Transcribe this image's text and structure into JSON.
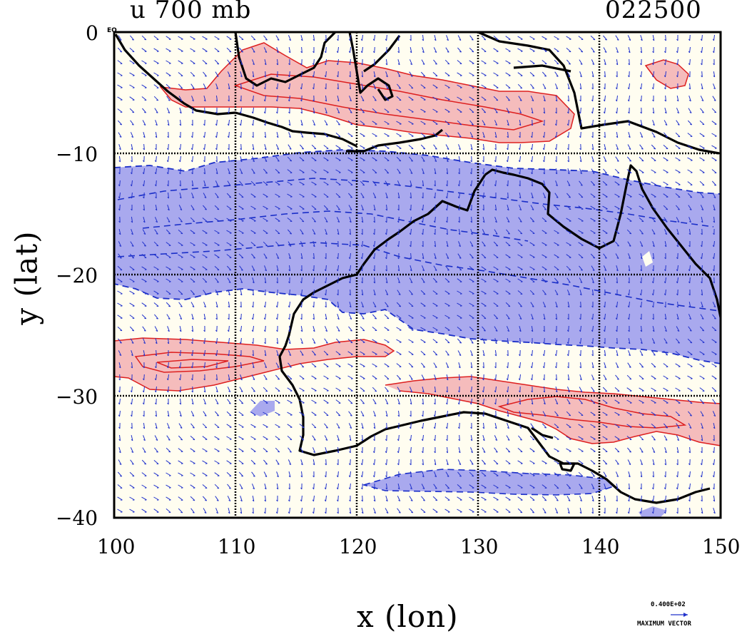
{
  "header": {
    "title_left": "u 700 mb",
    "title_right": "022500"
  },
  "axes": {
    "xlabel": "x (lon)",
    "ylabel": "y (lat)",
    "x_ticks": [
      "100",
      "110",
      "120",
      "130",
      "140",
      "150"
    ],
    "y_ticks": [
      "0",
      "−10",
      "−20",
      "−30",
      "−40"
    ],
    "corner_label": "EQ"
  },
  "legend": {
    "vector_value": "0.400E+02",
    "vector_title": "MAXIMUM VECTOR"
  },
  "colors": {
    "positive_fill": "#f5bcbc",
    "positive_line": "#dd1f1f",
    "negative_fill": "#a9a9ee",
    "negative_line": "#1a2ec8",
    "background": "#fffdf0",
    "vector": "#2233cc",
    "coast": "#000000"
  },
  "map": {
    "lon_range": [
      100,
      150
    ],
    "lat_range": [
      -40,
      0
    ],
    "grid": true
  }
}
